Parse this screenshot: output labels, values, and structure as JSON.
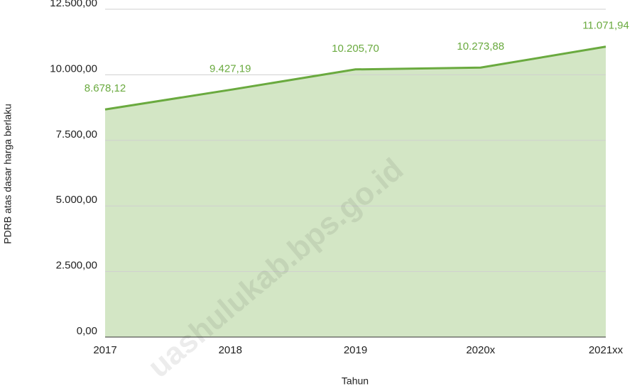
{
  "chart_data": {
    "type": "area",
    "xlabel": "Tahun",
    "ylabel": "PDRB atas dasar harga berlaku",
    "watermark": "uashulukab.bps.go.id",
    "categories": [
      "2017",
      "2018",
      "2019",
      "2020x",
      "2021xx"
    ],
    "series": [
      {
        "name": "PDRB atas dasar harga berlaku",
        "color": "#6aaa3f",
        "fill": "#d3e6c5",
        "values": [
          8678.12,
          9427.19,
          10205.7,
          10273.88,
          11071.94
        ],
        "value_labels": [
          "8.678,12",
          "9.427,19",
          "10.205,70",
          "10.273,88",
          "11.071,94"
        ]
      }
    ],
    "ylim": [
      0,
      12500
    ],
    "yticks": [
      {
        "value": 0,
        "label": "0,00"
      },
      {
        "value": 2500,
        "label": "2.500,00"
      },
      {
        "value": 5000,
        "label": "5.000,00"
      },
      {
        "value": 7500,
        "label": "7.500,00"
      },
      {
        "value": 10000,
        "label": "10.000,00"
      },
      {
        "value": 12500,
        "label": "12.500,00"
      }
    ],
    "grid": true
  }
}
